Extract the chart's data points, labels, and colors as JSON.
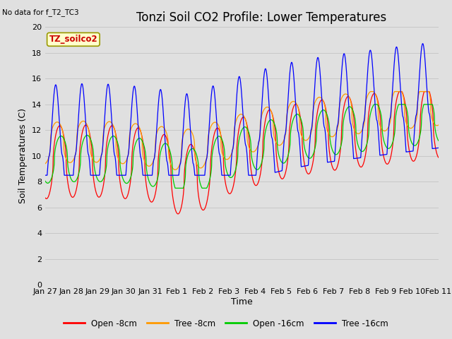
{
  "title": "Tonzi Soil CO2 Profile: Lower Temperatures",
  "no_data_text": "No data for f_T2_TC3",
  "annotation_text": "TZ_soilco2",
  "ylabel": "Soil Temperatures (C)",
  "xlabel": "Time",
  "ylim": [
    0,
    20
  ],
  "background_color": "#e0e0e0",
  "plot_bg_color": "#e0e0e0",
  "legend_labels": [
    "Open -8cm",
    "Tree -8cm",
    "Open -16cm",
    "Tree -16cm"
  ],
  "legend_colors": [
    "#ff0000",
    "#ff9900",
    "#00cc00",
    "#0000ff"
  ],
  "xtick_labels": [
    "Jan 27",
    "Jan 28",
    "Jan 29",
    "Jan 30",
    "Jan 31",
    "Feb 1",
    "Feb 2",
    "Feb 3",
    "Feb 4",
    "Feb 5",
    "Feb 6",
    "Feb 7",
    "Feb 8",
    "Feb 9",
    "Feb 10",
    "Feb 11"
  ],
  "title_fontsize": 12,
  "axis_label_fontsize": 9,
  "tick_fontsize": 8
}
